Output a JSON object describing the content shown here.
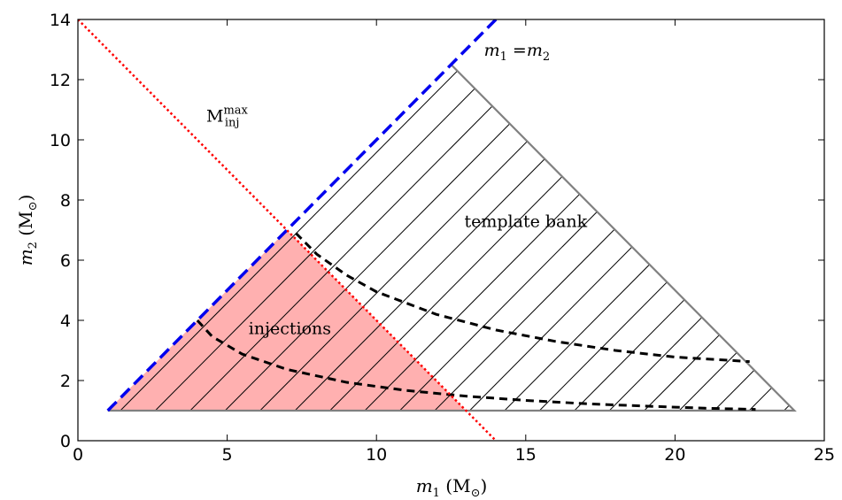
{
  "chart_data": {
    "type": "line",
    "xlabel": {
      "var": "m",
      "sub": "1",
      "unit": "M",
      "unit_sub": "⊙"
    },
    "ylabel": {
      "var": "m",
      "sub": "2",
      "unit": "M",
      "unit_sub": "⊙"
    },
    "xlim": [
      0,
      25
    ],
    "ylim": [
      0,
      14
    ],
    "xticks": [
      "0",
      "5",
      "10",
      "15",
      "20",
      "25"
    ],
    "yticks": [
      "0",
      "2",
      "4",
      "6",
      "8",
      "10",
      "12",
      "14"
    ],
    "grid": false,
    "colors": {
      "injection_fill": "#ffb0b0",
      "equal_mass_line": "#0000ee",
      "mmax_line": "#ff0000",
      "bank_edge": "#808080",
      "contour": "#000000"
    },
    "regions": {
      "template_bank": {
        "label": "template bank",
        "vertices": [
          [
            1,
            1
          ],
          [
            12.5,
            12.5
          ],
          [
            24,
            1
          ]
        ]
      },
      "injections": {
        "label": "injections",
        "vertices": [
          [
            1,
            1
          ],
          [
            7,
            7
          ],
          [
            13,
            1
          ]
        ]
      }
    },
    "lines": {
      "equal_mass": {
        "label_var1": "m",
        "label_sub1": "1",
        "label_eq": "=",
        "label_var2": "m",
        "label_sub2": "2",
        "x": [
          1,
          14
        ],
        "y": [
          1,
          14
        ]
      },
      "mmax_injection": {
        "label_main": "M",
        "label_sub": "inj",
        "label_sup": "max",
        "x": [
          0,
          14
        ],
        "y": [
          14,
          0
        ]
      }
    },
    "contours": [
      {
        "x": [
          4,
          4.5,
          5.5,
          7,
          9,
          11,
          13,
          15,
          17,
          19,
          21,
          22.7
        ],
        "y": [
          4,
          3.46,
          2.88,
          2.37,
          1.94,
          1.67,
          1.48,
          1.34,
          1.23,
          1.15,
          1.08,
          1.04
        ]
      },
      {
        "x": [
          7.3,
          8,
          9,
          10,
          12,
          14,
          16,
          18,
          20,
          22.5
        ],
        "y": [
          6.9,
          6.2,
          5.5,
          4.95,
          4.2,
          3.68,
          3.3,
          3.0,
          2.78,
          2.63
        ]
      }
    ]
  }
}
